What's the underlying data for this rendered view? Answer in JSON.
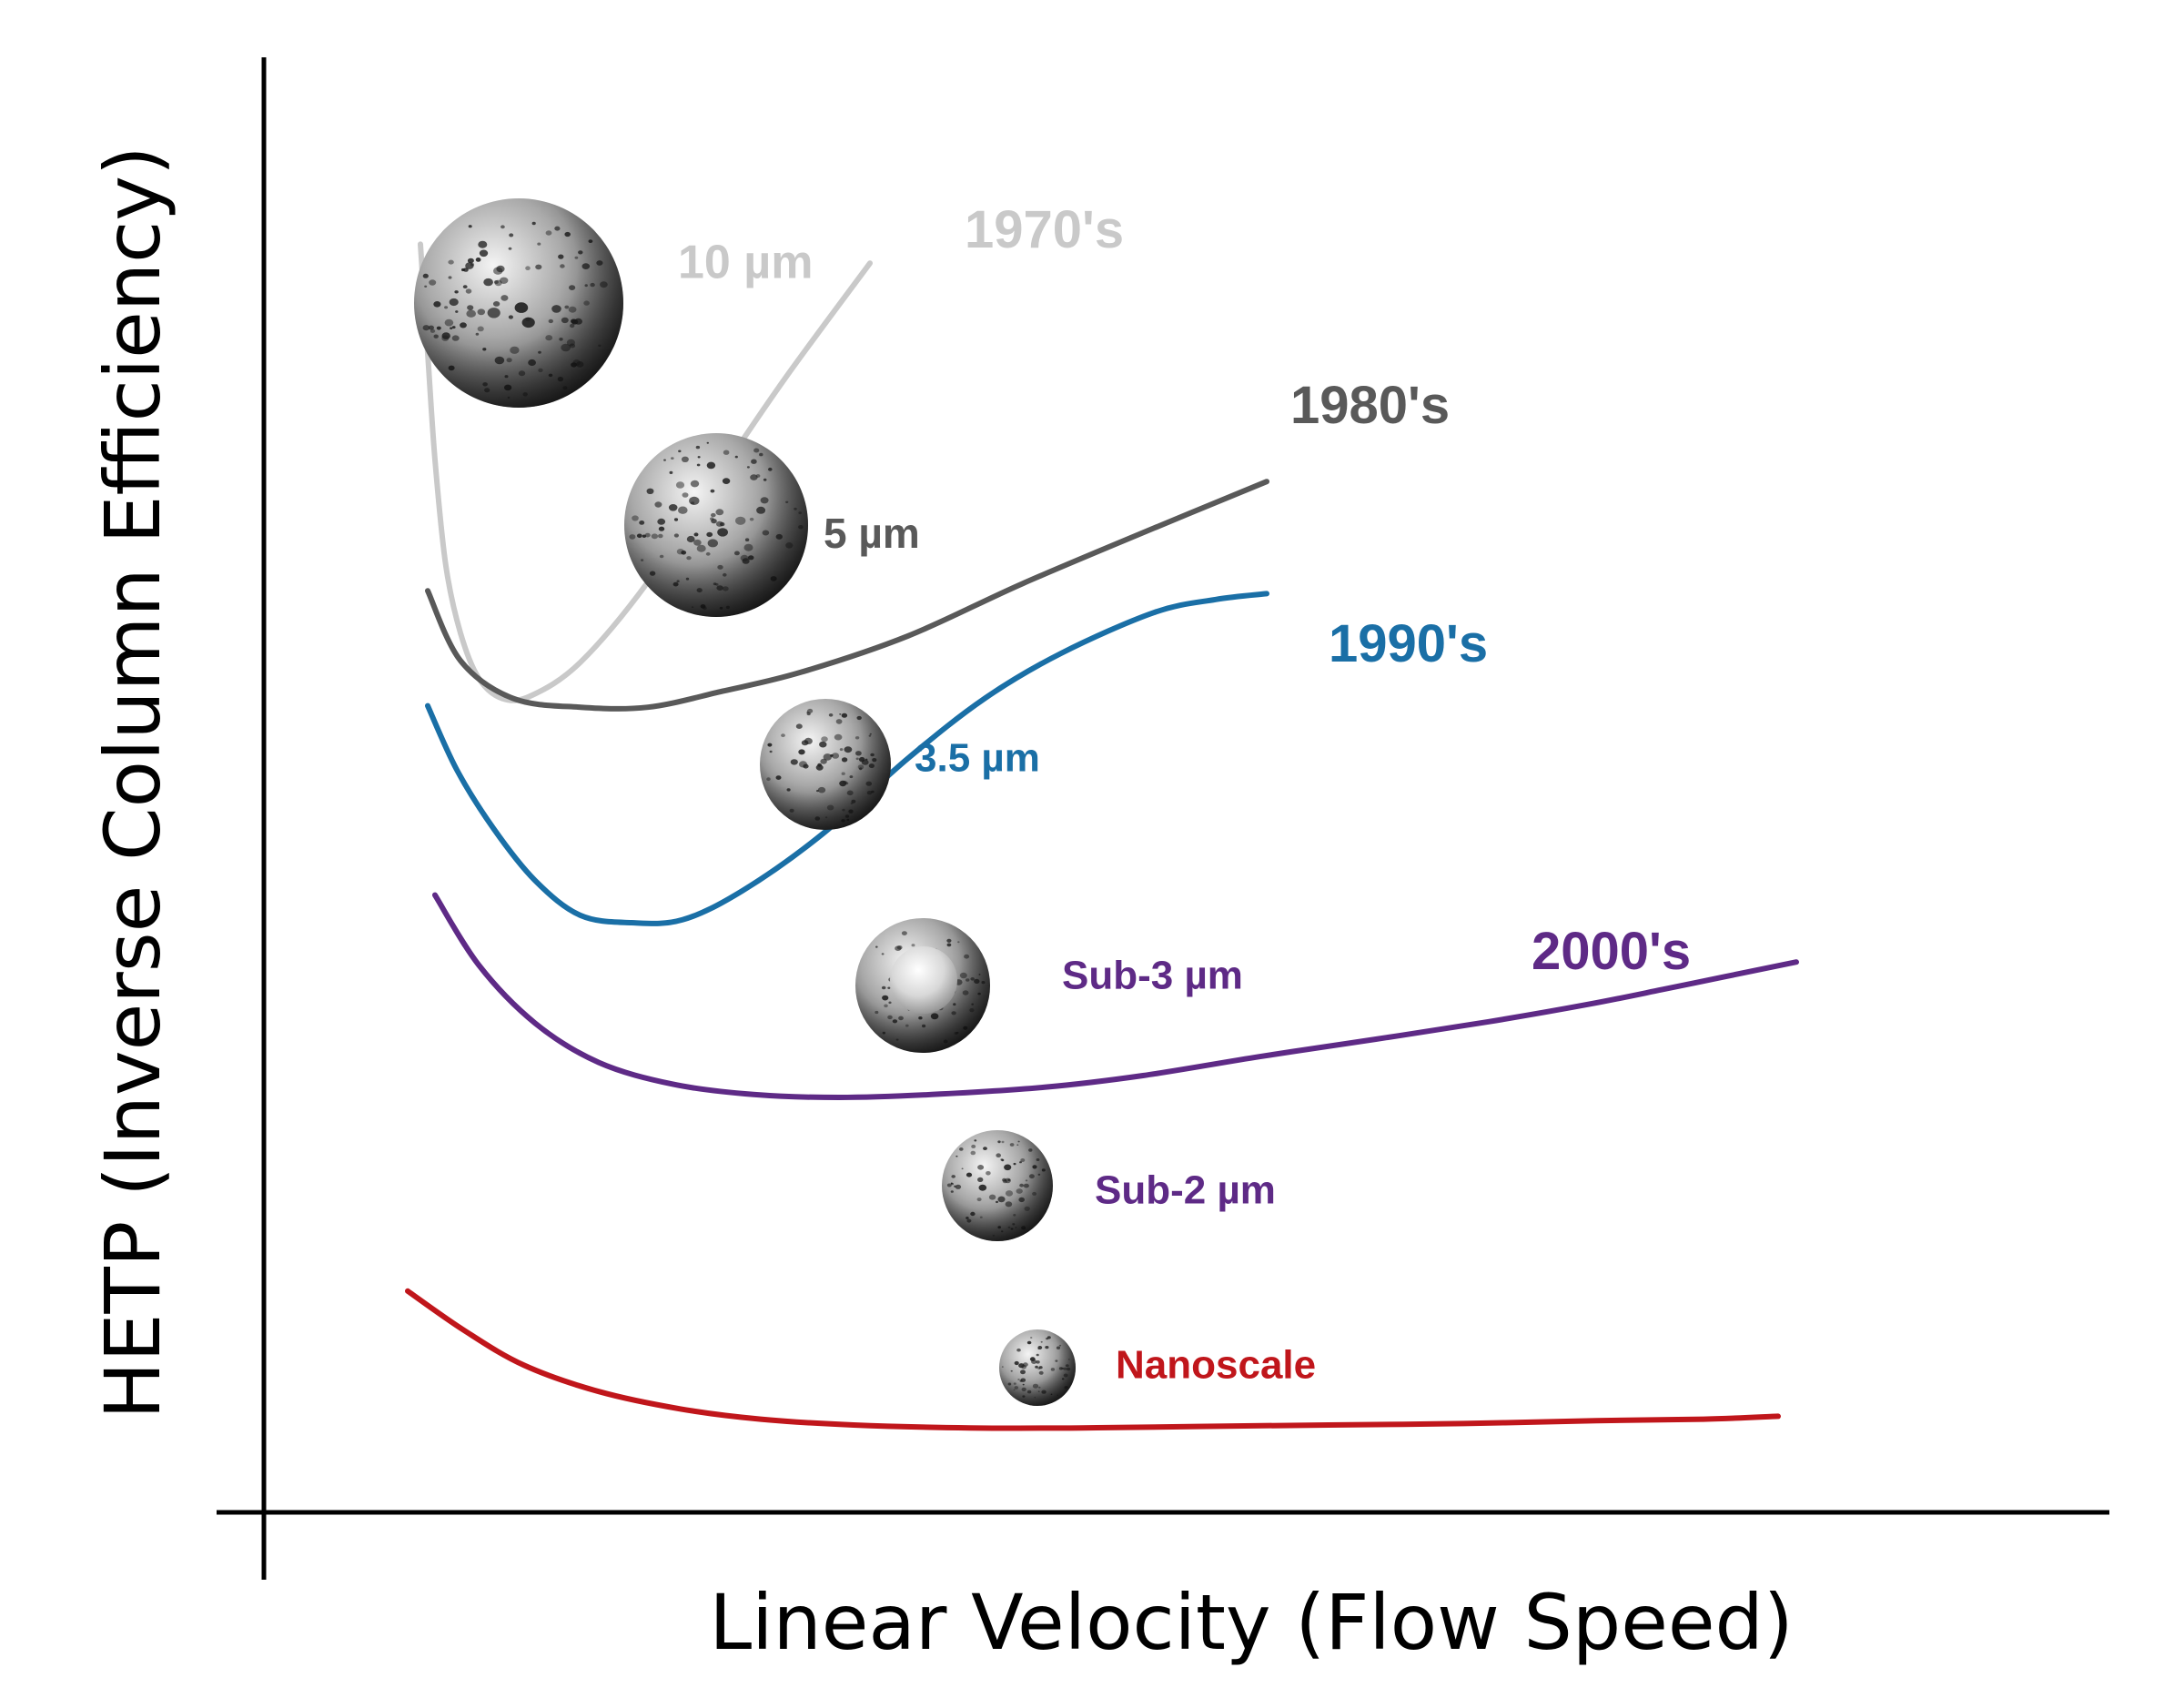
{
  "chart_data": {
    "type": "line",
    "xlabel": "Linear Velocity (Flow Speed)",
    "ylabel": "HETP (Inverse Column Efficiency)",
    "xlim": [
      0,
      100
    ],
    "ylim": [
      0,
      100
    ],
    "grid": false,
    "ticks": false,
    "legend": "none",
    "series": [
      {
        "name": "1970's",
        "particle_size": "10 µm",
        "color": "#c9c9c9",
        "particle": "porous",
        "x": [
          8.6,
          9.0,
          9.4,
          10.0,
          10.8,
          11.8,
          13.1,
          14.7,
          17.4,
          21.1,
          25.2,
          28.7,
          33.3
        ],
        "y": [
          87.1,
          79.6,
          72.3,
          65.0,
          60.4,
          57.3,
          55.9,
          56.1,
          58.4,
          63.9,
          71.6,
          78.0,
          85.8
        ]
      },
      {
        "name": "1980's",
        "particle_size": "5 µm",
        "color": "#595959",
        "particle": "porous",
        "x": [
          9.0,
          10.8,
          13.7,
          17.4,
          21.1,
          25.2,
          29.5,
          35.4,
          41.7,
          48.9,
          55.1
        ],
        "y": [
          63.3,
          58.5,
          55.9,
          55.3,
          55.3,
          56.4,
          57.7,
          60.2,
          63.8,
          67.6,
          70.8
        ]
      },
      {
        "name": "1990's",
        "particle_size": "3.5 µm",
        "color": "#1a6fa6",
        "particle": "porous",
        "x": [
          9.0,
          10.6,
          12.6,
          14.9,
          17.4,
          20.2,
          23.0,
          26.3,
          30.7,
          35.4,
          39.6,
          43.8,
          48.9,
          52.3,
          55.1
        ],
        "y": [
          55.4,
          51.0,
          47.0,
          43.4,
          41.0,
          40.5,
          40.7,
          42.7,
          46.6,
          51.8,
          55.9,
          59.0,
          61.8,
          62.7,
          63.1
        ]
      },
      {
        "name": "2000's",
        "particle_size": "Sub-3 µm",
        "color": "#5e2a86",
        "particle": "core-shell",
        "x": [
          9.4,
          11.8,
          14.9,
          18.4,
          22.5,
          26.9,
          31.6,
          36.7,
          42.9,
          48.3,
          54.7,
          61.1,
          67.3,
          72.8,
          76.8,
          80.3,
          84.2
        ],
        "y": [
          42.4,
          37.6,
          33.6,
          30.9,
          29.4,
          28.7,
          28.5,
          28.7,
          29.2,
          30.0,
          31.3,
          32.5,
          33.7,
          34.9,
          35.9,
          36.8,
          37.8
        ]
      },
      {
        "name": "",
        "particle_size": "Sub-2 µm",
        "color": "#5e2a86",
        "particle": "porous",
        "x": [],
        "y": []
      },
      {
        "name": "",
        "particle_size": "Nanoscale",
        "color": "#c0161b",
        "particle": "porous",
        "x": [
          7.9,
          11.0,
          14.3,
          18.4,
          22.9,
          27.3,
          32.4,
          38.8,
          44.9,
          51.3,
          58.5,
          65.9,
          73.2,
          79.1,
          83.2
        ],
        "y": [
          15.2,
          12.5,
          10.1,
          8.3,
          7.1,
          6.4,
          6.0,
          5.8,
          5.8,
          5.9,
          6.0,
          6.1,
          6.3,
          6.4,
          6.6
        ]
      }
    ]
  }
}
